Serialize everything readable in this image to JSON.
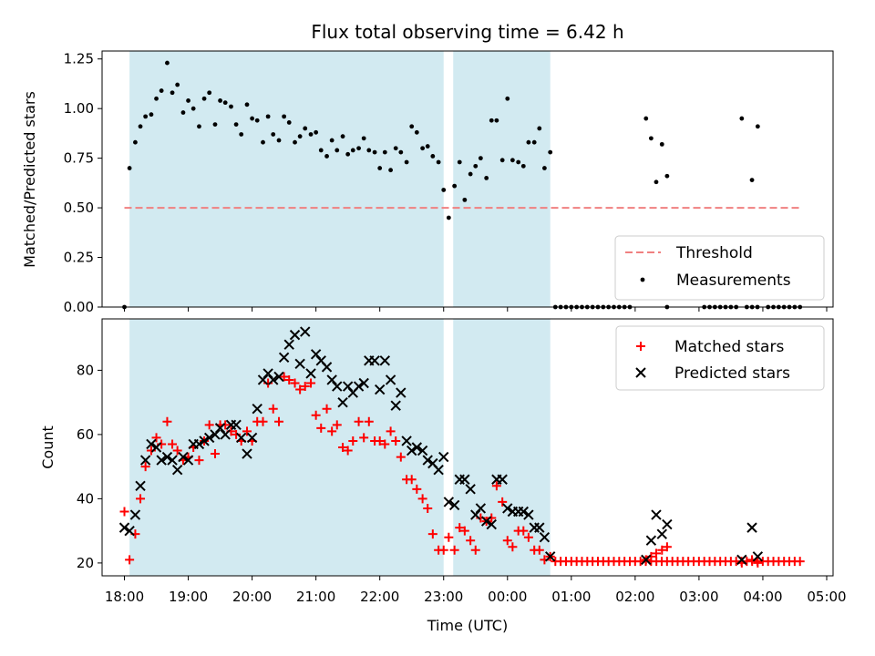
{
  "chart_data": {
    "title": "Flux total observing time = 6.42 h",
    "xlabel": "Time (UTC)",
    "x_ticks": [
      "18:00",
      "19:00",
      "20:00",
      "21:00",
      "22:00",
      "23:00",
      "00:00",
      "01:00",
      "02:00",
      "03:00",
      "04:00",
      "05:00"
    ],
    "x_range_hours": [
      17.65,
      29.1
    ],
    "shaded_intervals_hours": [
      [
        18.08,
        23.0
      ],
      [
        23.15,
        24.67
      ]
    ],
    "colors": {
      "shade": "#add8e6",
      "threshold": "#f08080",
      "measurements": "#000000",
      "matched": "#ff0000",
      "predicted": "#000000"
    },
    "panels": [
      {
        "type": "scatter",
        "ylabel": "Matched/Predicted stars",
        "ylim": [
          0,
          1.29
        ],
        "y_ticks": [
          "0.00",
          "0.25",
          "0.50",
          "0.75",
          "1.00",
          "1.25"
        ],
        "y_tick_values": [
          0,
          0.25,
          0.5,
          0.75,
          1.0,
          1.25
        ],
        "legend": {
          "placement": "lower-right",
          "entries": [
            "Threshold",
            "Measurements"
          ]
        },
        "threshold": {
          "name": "Threshold",
          "y": 0.5,
          "x_range": [
            18.0,
            28.6
          ]
        },
        "series": [
          {
            "name": "Measurements",
            "marker": "dot",
            "x": [
              18.0,
              18.08,
              18.17,
              18.25,
              18.33,
              18.42,
              18.5,
              18.58,
              18.67,
              18.75,
              18.83,
              18.92,
              19.0,
              19.08,
              19.17,
              19.25,
              19.33,
              19.42,
              19.5,
              19.58,
              19.67,
              19.75,
              19.83,
              19.92,
              20.0,
              20.08,
              20.17,
              20.25,
              20.33,
              20.42,
              20.5,
              20.58,
              20.67,
              20.75,
              20.83,
              20.92,
              21.0,
              21.08,
              21.17,
              21.25,
              21.33,
              21.42,
              21.5,
              21.58,
              21.67,
              21.75,
              21.83,
              21.92,
              22.0,
              22.08,
              22.17,
              22.25,
              22.33,
              22.42,
              22.5,
              22.58,
              22.67,
              22.75,
              22.83,
              22.92,
              23.0,
              23.08,
              23.17,
              23.25,
              23.33,
              23.42,
              23.5,
              23.58,
              23.67,
              23.75,
              23.83,
              23.92,
              24.0,
              24.08,
              24.17,
              24.25,
              24.33,
              24.42,
              24.5,
              24.58,
              24.67,
              26.17,
              26.25,
              26.33,
              26.42,
              26.5,
              27.67,
              27.83,
              27.92
            ],
            "y": [
              0.0,
              0.7,
              0.83,
              0.91,
              0.96,
              0.97,
              1.05,
              1.09,
              1.23,
              1.08,
              1.12,
              0.98,
              1.04,
              1.0,
              0.91,
              1.05,
              1.08,
              0.92,
              1.04,
              1.03,
              1.01,
              0.92,
              0.87,
              1.02,
              0.95,
              0.94,
              0.83,
              0.96,
              0.87,
              0.84,
              0.96,
              0.93,
              0.83,
              0.86,
              0.9,
              0.87,
              0.88,
              0.79,
              0.76,
              0.84,
              0.79,
              0.86,
              0.77,
              0.79,
              0.8,
              0.85,
              0.79,
              0.78,
              0.7,
              0.78,
              0.69,
              0.8,
              0.78,
              0.73,
              0.91,
              0.88,
              0.8,
              0.81,
              0.76,
              0.73,
              0.59,
              0.45,
              0.61,
              0.73,
              0.54,
              0.67,
              0.71,
              0.75,
              0.65,
              0.94,
              0.94,
              0.74,
              1.05,
              0.74,
              0.73,
              0.71,
              0.83,
              0.83,
              0.9,
              0.7,
              0.78,
              0.95,
              0.85,
              0.63,
              0.82,
              0.66,
              0.95,
              0.64,
              0.91
            ]
          },
          {
            "name": "Measurements",
            "marker": "dot",
            "x_start": 24.75,
            "x_end": 28.6,
            "x_step": 0.0833,
            "value": 0.0,
            "gaps_hours": [
              [
                25.95,
                26.42
              ],
              [
                26.5,
                27.0
              ],
              [
                27.62,
                27.72
              ],
              [
                27.92,
                28.0
              ]
            ]
          }
        ]
      },
      {
        "type": "scatter",
        "ylabel": "Count",
        "ylim": [
          16,
          96
        ],
        "y_ticks": [
          "20",
          "40",
          "60",
          "80"
        ],
        "y_tick_values": [
          20,
          40,
          60,
          80
        ],
        "legend": {
          "placement": "top-right",
          "entries": [
            "Matched stars",
            "Predicted stars"
          ]
        },
        "series": [
          {
            "name": "Matched stars",
            "marker": "plus",
            "x": [
              18.0,
              18.08,
              18.17,
              18.25,
              18.33,
              18.42,
              18.5,
              18.58,
              18.67,
              18.75,
              18.83,
              18.92,
              19.0,
              19.08,
              19.17,
              19.25,
              19.33,
              19.42,
              19.5,
              19.58,
              19.67,
              19.75,
              19.83,
              19.92,
              20.0,
              20.08,
              20.17,
              20.25,
              20.33,
              20.42,
              20.5,
              20.58,
              20.67,
              20.75,
              20.83,
              20.92,
              21.0,
              21.08,
              21.17,
              21.25,
              21.33,
              21.42,
              21.5,
              21.58,
              21.67,
              21.75,
              21.83,
              21.92,
              22.0,
              22.08,
              22.17,
              22.25,
              22.33,
              22.42,
              22.5,
              22.58,
              22.67,
              22.75,
              22.83,
              22.92,
              23.0,
              23.08,
              23.17,
              23.25,
              23.33,
              23.42,
              23.5,
              23.58,
              23.67,
              23.75,
              23.83,
              23.92,
              24.0,
              24.08,
              24.17,
              24.25,
              24.33,
              24.42,
              24.5,
              24.58,
              24.67,
              26.17,
              26.25,
              26.33,
              26.42,
              26.5,
              27.67,
              27.83,
              27.92
            ],
            "y": [
              36,
              21,
              29,
              40,
              50,
              55,
              59,
              57,
              64,
              57,
              55,
              52,
              53,
              56,
              52,
              58,
              63,
              54,
              63,
              63,
              61,
              60,
              58,
              61,
              58,
              64,
              64,
              76,
              68,
              64,
              78,
              77,
              76,
              74,
              75,
              76,
              66,
              62,
              68,
              61,
              63,
              56,
              55,
              58,
              64,
              59,
              64,
              58,
              58,
              57,
              61,
              58,
              53,
              46,
              46,
              43,
              40,
              37,
              29,
              24,
              24,
              28,
              24,
              31,
              30,
              27,
              24,
              34,
              33,
              34,
              44,
              39,
              27,
              25,
              30,
              30,
              28,
              24,
              24,
              21,
              22,
              21,
              22,
              23,
              24,
              25,
              20,
              21,
              20
            ]
          },
          {
            "name": "Matched stars",
            "marker": "plus",
            "x_start": 24.75,
            "x_end": 28.6,
            "x_step": 0.0833,
            "value": 20.5,
            "gaps_hours": []
          },
          {
            "name": "Predicted stars",
            "marker": "x",
            "x": [
              18.0,
              18.08,
              18.17,
              18.25,
              18.33,
              18.42,
              18.5,
              18.58,
              18.67,
              18.75,
              18.83,
              18.92,
              19.0,
              19.08,
              19.17,
              19.25,
              19.33,
              19.42,
              19.5,
              19.58,
              19.67,
              19.75,
              19.83,
              19.92,
              20.0,
              20.08,
              20.17,
              20.25,
              20.33,
              20.42,
              20.5,
              20.58,
              20.67,
              20.75,
              20.83,
              20.92,
              21.0,
              21.08,
              21.17,
              21.25,
              21.33,
              21.42,
              21.5,
              21.58,
              21.67,
              21.75,
              21.83,
              21.92,
              22.0,
              22.08,
              22.17,
              22.25,
              22.33,
              22.42,
              22.5,
              22.58,
              22.67,
              22.75,
              22.83,
              22.92,
              23.0,
              23.08,
              23.17,
              23.25,
              23.33,
              23.42,
              23.5,
              23.58,
              23.67,
              23.75,
              23.83,
              23.92,
              24.0,
              24.08,
              24.17,
              24.25,
              24.33,
              24.42,
              24.5,
              24.58,
              24.67,
              26.17,
              26.25,
              26.33,
              26.42,
              26.5,
              27.67,
              27.83,
              27.92
            ],
            "y": [
              31,
              30,
              35,
              44,
              52,
              57,
              56,
              52,
              53,
              52,
              49,
              53,
              52,
              57,
              57,
              58,
              59,
              60,
              62,
              60,
              63,
              63,
              59,
              54,
              59,
              68,
              77,
              79,
              77,
              78,
              84,
              88,
              91,
              82,
              92,
              79,
              85,
              83,
              81,
              77,
              75,
              70,
              75,
              73,
              75,
              76,
              83,
              83,
              74,
              83,
              77,
              69,
              73,
              58,
              55,
              56,
              55,
              52,
              51,
              49,
              53,
              39,
              38,
              46,
              46,
              43,
              35,
              37,
              33,
              32,
              46,
              46,
              37,
              36,
              36,
              36,
              35,
              31,
              31,
              28,
              22,
              21,
              27,
              35,
              29,
              32,
              21,
              31,
              22
            ]
          }
        ]
      }
    ]
  }
}
